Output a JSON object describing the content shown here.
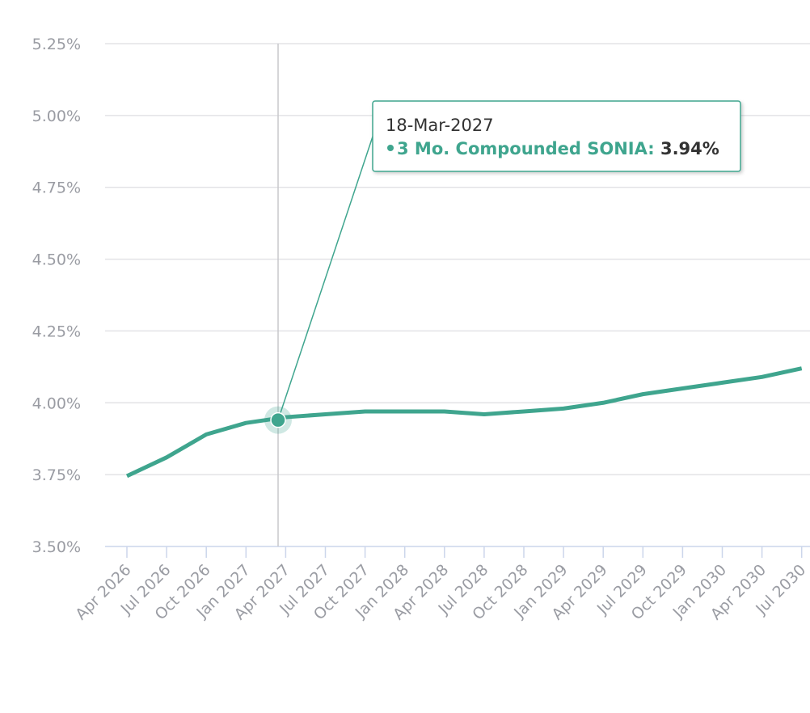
{
  "chart_data": {
    "type": "line",
    "categories": [
      "Apr 2026",
      "Jul 2026",
      "Oct 2026",
      "Jan 2027",
      "Apr 2027",
      "Jul 2027",
      "Oct 2027",
      "Jan 2028",
      "Apr 2028",
      "Jul 2028",
      "Oct 2028",
      "Jan 2029",
      "Apr 2029",
      "Jul 2029",
      "Oct 2029",
      "Jan 2030",
      "Apr 2030",
      "Jul 2030"
    ],
    "series": [
      {
        "name": "3 Mo. Compounded SONIA",
        "color": "#3fa58e",
        "values": [
          3.745,
          3.81,
          3.89,
          3.93,
          3.95,
          3.96,
          3.97,
          3.97,
          3.97,
          3.96,
          3.97,
          3.98,
          4.0,
          4.03,
          4.05,
          4.07,
          4.09,
          4.12
        ]
      }
    ],
    "ylim": [
      3.5,
      5.25
    ],
    "yticks": [
      {
        "value": 3.5,
        "label": "3.50%"
      },
      {
        "value": 3.75,
        "label": "3.75%"
      },
      {
        "value": 4.0,
        "label": "4.00%"
      },
      {
        "value": 4.25,
        "label": "4.25%"
      },
      {
        "value": 4.5,
        "label": "4.50%"
      },
      {
        "value": 4.75,
        "label": "4.75%"
      },
      {
        "value": 5.0,
        "label": "5.00%"
      },
      {
        "value": 5.25,
        "label": "5.25%"
      }
    ],
    "grid": true,
    "tooltip": {
      "x": "18-Mar-2027",
      "value": 3.94,
      "value_label": "3.94%"
    }
  }
}
